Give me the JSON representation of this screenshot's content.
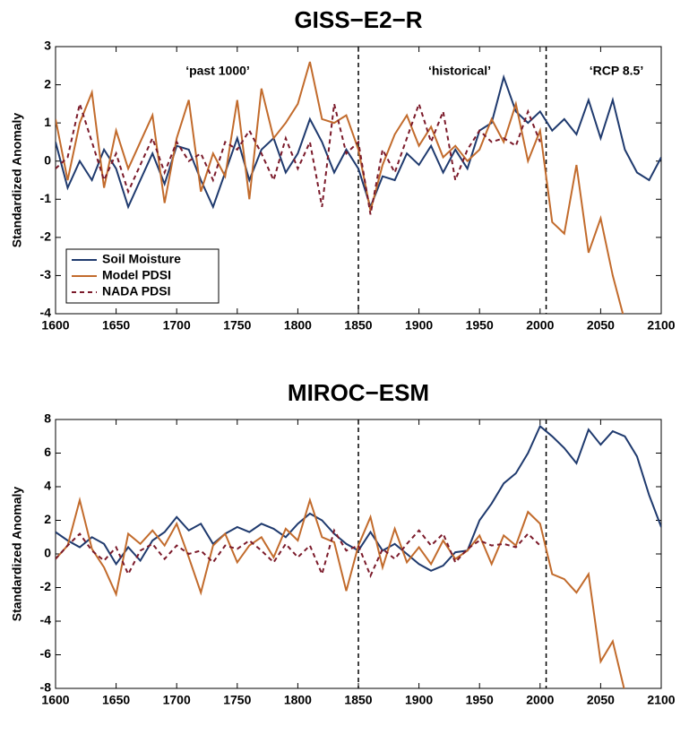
{
  "chart_data": [
    {
      "type": "line",
      "title": "GISS−E2−R",
      "ylabel": "Standardized Anomaly",
      "annotations": [
        "‘past 1000’",
        "‘historical’",
        "‘RCP 8.5’"
      ],
      "vlines": [
        1850,
        2005
      ],
      "legend": "lower left",
      "xlim": [
        1600,
        2100
      ],
      "xticks": [
        1600,
        1650,
        1700,
        1750,
        1800,
        1850,
        1900,
        1950,
        2000,
        2050,
        2100
      ],
      "ylim": [
        -4,
        3
      ],
      "yticks": [
        -4,
        -3,
        -2,
        -1,
        0,
        1,
        2,
        3
      ],
      "x": [
        1600,
        1610,
        1620,
        1630,
        1640,
        1650,
        1660,
        1670,
        1680,
        1690,
        1700,
        1710,
        1720,
        1730,
        1740,
        1750,
        1760,
        1770,
        1780,
        1790,
        1800,
        1810,
        1820,
        1830,
        1840,
        1850,
        1860,
        1870,
        1880,
        1890,
        1900,
        1910,
        1920,
        1930,
        1940,
        1950,
        1960,
        1970,
        1980,
        1990,
        2000,
        2010,
        2020,
        2030,
        2040,
        2050,
        2060,
        2070,
        2080,
        2090,
        2100
      ],
      "series": [
        {
          "name": "Soil Moisture",
          "color": "#1f3a6e",
          "linestyle": "solid",
          "values": [
            0.5,
            -0.7,
            0,
            -0.5,
            0.3,
            -0.2,
            -1.2,
            -0.5,
            0.2,
            -0.6,
            0.4,
            0.3,
            -0.5,
            -1.2,
            -0.3,
            0.6,
            -0.5,
            0.3,
            0.6,
            -0.3,
            0.2,
            1.1,
            0.5,
            -0.3,
            0.3,
            -0.2,
            -1.2,
            -0.4,
            -0.5,
            0.2,
            -0.1,
            0.4,
            -0.3,
            0.3,
            -0.2,
            0.8,
            1.0,
            2.2,
            1.3,
            1.0,
            1.3,
            0.8,
            1.1,
            0.7,
            1.6,
            0.6,
            1.6,
            0.3,
            -0.3,
            -0.5,
            0.1
          ]
        },
        {
          "name": "Model PDSI",
          "color": "#c26b2c",
          "linestyle": "solid",
          "values": [
            1.1,
            -0.5,
            1.0,
            1.8,
            -0.7,
            0.8,
            -0.2,
            0.5,
            1.2,
            -1.1,
            0.6,
            1.6,
            -0.8,
            0.2,
            -0.4,
            1.6,
            -1.0,
            1.9,
            0.6,
            1.0,
            1.5,
            2.6,
            1.1,
            1.0,
            1.2,
            0.3,
            -1.3,
            -0.1,
            0.7,
            1.2,
            0.4,
            0.9,
            0.1,
            0.4,
            0.0,
            0.3,
            1.1,
            0.5,
            1.5,
            0.0,
            0.8,
            -1.6,
            -1.9,
            -0.1,
            -2.4,
            -1.5,
            -3.0,
            -4.2,
            null,
            null,
            null
          ]
        },
        {
          "name": "NADA PDSI",
          "color": "#7b1a2a",
          "linestyle": "dashed",
          "values": [
            -0.2,
            0.1,
            1.5,
            0.5,
            -0.5,
            0.2,
            -0.8,
            -0.1,
            0.6,
            -0.3,
            0.5,
            0.0,
            0.2,
            -0.5,
            0.5,
            0.3,
            0.8,
            0.2,
            -0.5,
            0.6,
            -0.2,
            0.5,
            -1.2,
            1.5,
            0.2,
            0.5,
            -1.4,
            0.3,
            -0.3,
            0.6,
            1.5,
            0.5,
            1.3,
            -0.5,
            0.3,
            0.8,
            0.5,
            0.6,
            0.4,
            1.3,
            0.5,
            null,
            null,
            null,
            null,
            null,
            null,
            null,
            null,
            null,
            null
          ]
        }
      ]
    },
    {
      "type": "line",
      "title": "MIROC−ESM",
      "ylabel": "Standardized Anomaly",
      "vlines": [
        1850,
        2005
      ],
      "xlim": [
        1600,
        2100
      ],
      "xticks": [
        1600,
        1650,
        1700,
        1750,
        1800,
        1850,
        1900,
        1950,
        2000,
        2050,
        2100
      ],
      "ylim": [
        -8,
        8
      ],
      "yticks": [
        -8,
        -6,
        -4,
        -2,
        0,
        2,
        4,
        6,
        8
      ],
      "x": [
        1600,
        1610,
        1620,
        1630,
        1640,
        1650,
        1660,
        1670,
        1680,
        1690,
        1700,
        1710,
        1720,
        1730,
        1740,
        1750,
        1760,
        1770,
        1780,
        1790,
        1800,
        1810,
        1820,
        1830,
        1840,
        1850,
        1860,
        1870,
        1880,
        1890,
        1900,
        1910,
        1920,
        1930,
        1940,
        1950,
        1960,
        1970,
        1980,
        1990,
        2000,
        2010,
        2020,
        2030,
        2040,
        2050,
        2060,
        2070,
        2080,
        2090,
        2100
      ],
      "series": [
        {
          "name": "Soil Moisture",
          "color": "#1f3a6e",
          "linestyle": "solid",
          "values": [
            1.3,
            0.8,
            0.4,
            1.0,
            0.6,
            -0.6,
            0.4,
            -0.4,
            0.8,
            1.3,
            2.2,
            1.4,
            1.8,
            0.6,
            1.2,
            1.6,
            1.3,
            1.8,
            1.5,
            1.0,
            1.8,
            2.4,
            2.0,
            1.2,
            0.6,
            0.2,
            1.3,
            0.2,
            0.6,
            0.0,
            -0.6,
            -1.0,
            -0.7,
            0.1,
            0.2,
            2.0,
            3.0,
            4.2,
            4.8,
            6.0,
            7.6,
            7.0,
            6.3,
            5.4,
            7.4,
            6.5,
            7.3,
            7.0,
            5.8,
            3.5,
            1.6
          ]
        },
        {
          "name": "Model PDSI",
          "color": "#c26b2c",
          "linestyle": "solid",
          "values": [
            -0.3,
            0.5,
            3.2,
            0.3,
            -0.8,
            -2.4,
            1.2,
            0.6,
            1.4,
            0.5,
            1.8,
            -0.2,
            -2.3,
            0.5,
            1.2,
            -0.5,
            0.5,
            1.0,
            -0.2,
            1.5,
            0.8,
            3.2,
            1.0,
            0.7,
            -2.2,
            0.5,
            2.2,
            -0.8,
            1.5,
            -0.5,
            0.4,
            -0.6,
            0.8,
            -0.3,
            0.2,
            1.1,
            -0.6,
            1.1,
            0.5,
            2.5,
            1.8,
            -1.2,
            -1.5,
            -2.3,
            -1.2,
            -6.4,
            -5.2,
            -8.2,
            null,
            null,
            null
          ]
        },
        {
          "name": "NADA PDSI",
          "color": "#7b1a2a",
          "linestyle": "dashed",
          "values": [
            -0.3,
            0.5,
            1.2,
            0.2,
            -0.4,
            0.4,
            -1.2,
            0.2,
            0.6,
            -0.3,
            0.5,
            0.0,
            0.2,
            -0.5,
            0.5,
            0.3,
            0.8,
            0.2,
            -0.5,
            0.6,
            -0.2,
            0.5,
            -1.2,
            1.4,
            0.2,
            0.5,
            -1.3,
            0.3,
            -0.3,
            0.6,
            1.4,
            0.5,
            1.2,
            -0.5,
            0.3,
            0.8,
            0.5,
            0.6,
            0.4,
            1.2,
            0.5,
            null,
            null,
            null,
            null,
            null,
            null,
            null,
            null,
            null,
            null
          ]
        }
      ]
    }
  ]
}
